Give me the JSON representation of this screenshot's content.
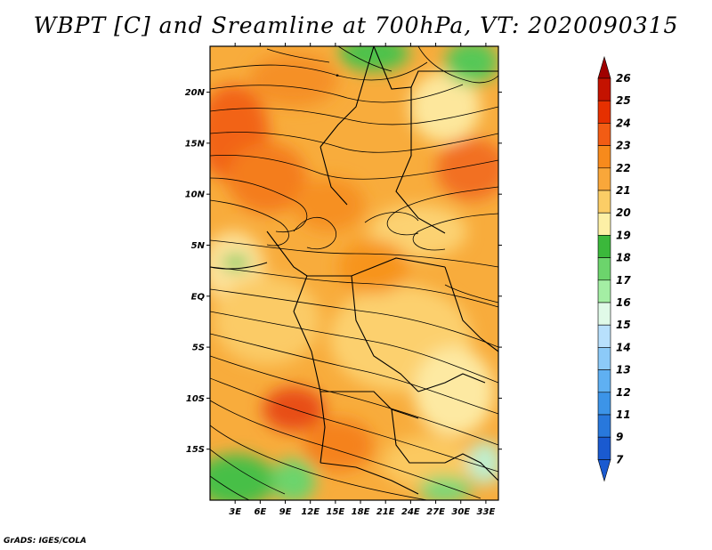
{
  "title": "WBPT [C] and Sreamline at 700hPa, VT: 2020090315",
  "credit": "GrADS: IGES/COLA",
  "map": {
    "lat_labels": [
      "20N",
      "15N",
      "10N",
      "5N",
      "EQ",
      "5S",
      "10S",
      "15S"
    ],
    "lat_values": [
      20,
      15,
      10,
      5,
      0,
      -5,
      -10,
      -15
    ],
    "lon_labels": [
      "3E",
      "6E",
      "9E",
      "12E",
      "15E",
      "18E",
      "21E",
      "24E",
      "27E",
      "30E",
      "33E"
    ],
    "lon_values": [
      3,
      6,
      9,
      12,
      15,
      18,
      21,
      24,
      27,
      30,
      33
    ],
    "lat_range": [
      -20,
      24.5
    ],
    "lon_range": [
      0,
      34.5
    ]
  },
  "colorbar": {
    "labels": [
      "26",
      "25",
      "24",
      "23",
      "22",
      "21",
      "20",
      "19",
      "18",
      "17",
      "16",
      "15",
      "14",
      "13",
      "12",
      "11",
      "9",
      "7"
    ],
    "colors": [
      "#a00000",
      "#c41200",
      "#e63000",
      "#f25c14",
      "#f78a1c",
      "#f9a73a",
      "#fbcd66",
      "#fdf0a6",
      "#3bb83b",
      "#6cd46c",
      "#a4eea4",
      "#e0fae8",
      "#b8e0fc",
      "#8ccaf8",
      "#5fb0f2",
      "#3c94e8",
      "#2878dc",
      "#1a5ad0"
    ],
    "top_arrow_color": "#a00000",
    "bottom_arrow_color": "#1a5ad0"
  }
}
